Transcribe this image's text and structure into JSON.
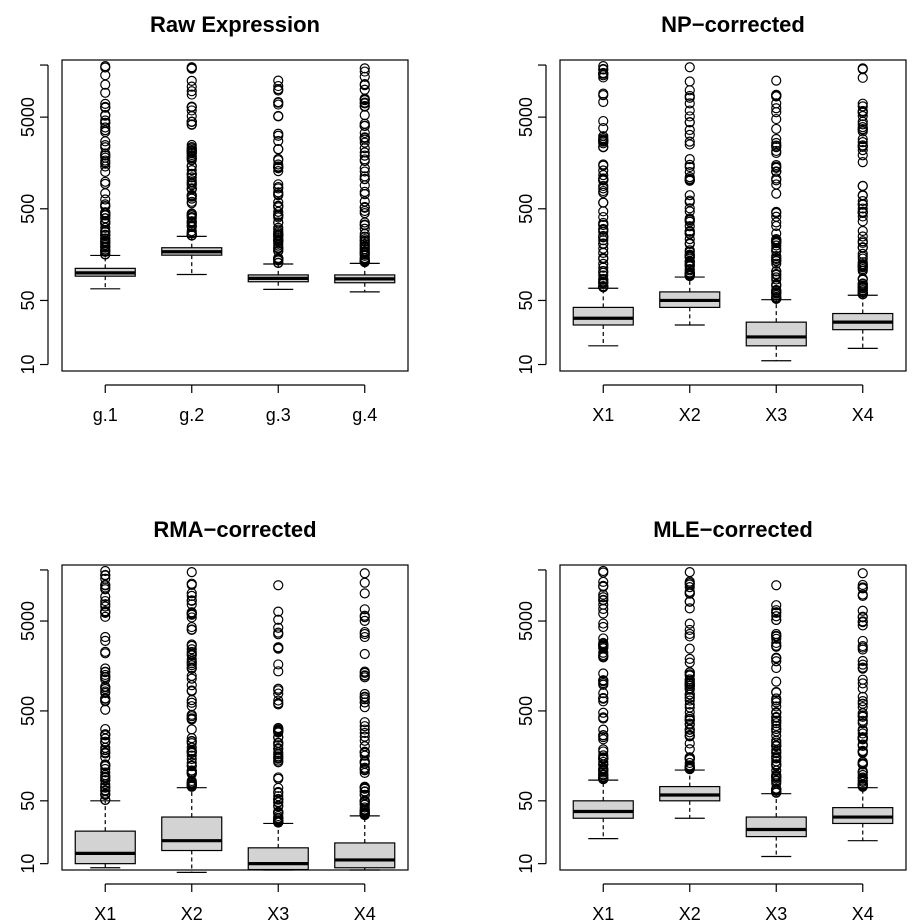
{
  "chart_data": [
    {
      "type": "boxplot",
      "title": "Raw Expression",
      "yscale": "log",
      "ylim": [
        8.5,
        21000
      ],
      "yticks": [
        10,
        50,
        500,
        5000
      ],
      "categories": [
        "g.1",
        "g.2",
        "g.3",
        "g.4"
      ],
      "boxes": [
        {
          "lower_whisker": 67,
          "q1": 92,
          "median": 100,
          "q3": 112,
          "upper_whisker": 155,
          "outlier_max": 18000
        },
        {
          "lower_whisker": 96,
          "q1": 156,
          "median": 170,
          "q3": 188,
          "upper_whisker": 250,
          "outlier_max": 17500
        },
        {
          "lower_whisker": 66,
          "q1": 80,
          "median": 87,
          "q3": 95,
          "upper_whisker": 125,
          "outlier_max": 12500
        },
        {
          "lower_whisker": 62,
          "q1": 78,
          "median": 86,
          "q3": 95,
          "upper_whisker": 127,
          "outlier_max": 17000
        }
      ]
    },
    {
      "type": "boxplot",
      "title": "NP−corrected",
      "yscale": "log",
      "ylim": [
        8.5,
        21000
      ],
      "yticks": [
        10,
        50,
        500,
        5000
      ],
      "categories": [
        "X1",
        "X2",
        "X3",
        "X4"
      ],
      "boxes": [
        {
          "lower_whisker": 16,
          "q1": 27,
          "median": 32,
          "q3": 42,
          "upper_whisker": 68,
          "outlier_max": 18000
        },
        {
          "lower_whisker": 27,
          "q1": 42,
          "median": 50,
          "q3": 62,
          "upper_whisker": 90,
          "outlier_max": 17500
        },
        {
          "lower_whisker": 11,
          "q1": 16,
          "median": 20,
          "q3": 29,
          "upper_whisker": 51,
          "outlier_max": 12500
        },
        {
          "lower_whisker": 15,
          "q1": 24,
          "median": 29,
          "q3": 36,
          "upper_whisker": 57,
          "outlier_max": 17000
        }
      ]
    },
    {
      "type": "boxplot",
      "title": "RMA−corrected",
      "yscale": "log",
      "ylim": [
        8.5,
        21000
      ],
      "yticks": [
        10,
        50,
        500,
        5000
      ],
      "categories": [
        "X1",
        "X2",
        "X3",
        "X4"
      ],
      "boxes": [
        {
          "lower_whisker": 9,
          "q1": 10,
          "median": 13,
          "q3": 23,
          "upper_whisker": 50,
          "outlier_max": 18000
        },
        {
          "lower_whisker": 8,
          "q1": 14,
          "median": 18,
          "q3": 33,
          "upper_whisker": 70,
          "outlier_max": 17500
        },
        {
          "lower_whisker": 8.5,
          "q1": 8.6,
          "median": 10,
          "q3": 15,
          "upper_whisker": 28,
          "outlier_max": 12500
        },
        {
          "lower_whisker": 8.5,
          "q1": 9,
          "median": 11,
          "q3": 17,
          "upper_whisker": 34,
          "outlier_max": 17000
        }
      ]
    },
    {
      "type": "boxplot",
      "title": "MLE−corrected",
      "yscale": "log",
      "ylim": [
        8.5,
        21000
      ],
      "yticks": [
        10,
        50,
        500,
        5000
      ],
      "categories": [
        "X1",
        "X2",
        "X3",
        "X4"
      ],
      "boxes": [
        {
          "lower_whisker": 19,
          "q1": 32,
          "median": 38,
          "q3": 50,
          "upper_whisker": 85,
          "outlier_max": 18000
        },
        {
          "lower_whisker": 32,
          "q1": 50,
          "median": 58,
          "q3": 72,
          "upper_whisker": 110,
          "outlier_max": 17500
        },
        {
          "lower_whisker": 12,
          "q1": 20,
          "median": 24,
          "q3": 33,
          "upper_whisker": 60,
          "outlier_max": 12500
        },
        {
          "lower_whisker": 18,
          "q1": 28,
          "median": 33,
          "q3": 42,
          "upper_whisker": 70,
          "outlier_max": 17000
        }
      ]
    }
  ]
}
